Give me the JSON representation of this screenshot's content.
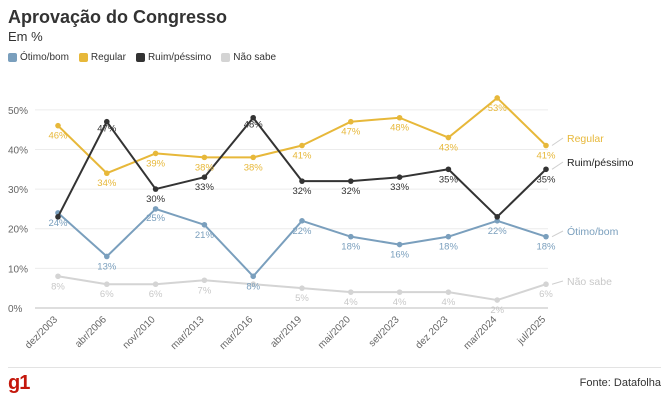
{
  "header": {
    "title": "Aprovação do Congresso",
    "subtitle": "Em %"
  },
  "footer": {
    "logo": "g1",
    "source": "Fonte: Datafolha"
  },
  "chart_data": {
    "type": "line",
    "categories": [
      "dez/2003",
      "abr/2006",
      "nov/2010",
      "mar/2013",
      "mar/2016",
      "abr/2019",
      "mai/2020",
      "set/2023",
      "dez 2023",
      "mar/2024",
      "jul/2025"
    ],
    "yticks": [
      "0%",
      "10%",
      "20%",
      "30%",
      "40%",
      "50%"
    ],
    "ylim": [
      0,
      55
    ],
    "grid": true,
    "legend_position": "top-left",
    "series": [
      {
        "name": "Ótimo/bom",
        "end_label": "Ótimo/bom",
        "color": "#7a9fbd",
        "values": [
          24,
          13,
          25,
          21,
          8,
          22,
          18,
          16,
          18,
          22,
          18
        ],
        "labels": [
          "24%",
          "13%",
          "25%",
          "21%",
          "8%",
          "22%",
          "18%",
          "16%",
          "18%",
          "22%",
          "18%"
        ]
      },
      {
        "name": "Regular",
        "end_label": "Regular",
        "color": "#e7b83a",
        "values": [
          46,
          34,
          39,
          38,
          38,
          41,
          47,
          48,
          43,
          53,
          41
        ],
        "labels": [
          "46%",
          "34%",
          "39%",
          "38%",
          "38%",
          "41%",
          "47%",
          "48%",
          "43%",
          "53%",
          "41%"
        ]
      },
      {
        "name": "Ruim/péssimo",
        "end_label": "Ruim/péssimo",
        "color": "#333333",
        "values": [
          23,
          47,
          30,
          33,
          48,
          32,
          32,
          33,
          35,
          23,
          35
        ],
        "labels": [
          "",
          "47%",
          "30%",
          "33%",
          "48%",
          "32%",
          "32%",
          "33%",
          "35%",
          "",
          "35%"
        ]
      },
      {
        "name": "Não sabe",
        "end_label": "Não sabe",
        "color": "#d4d4d4",
        "values": [
          8,
          6,
          6,
          7,
          6,
          5,
          4,
          4,
          4,
          2,
          6
        ],
        "labels": [
          "8%",
          "6%",
          "6%",
          "7%",
          "",
          "5%",
          "4%",
          "4%",
          "4%",
          "2%",
          "6%"
        ]
      }
    ]
  }
}
